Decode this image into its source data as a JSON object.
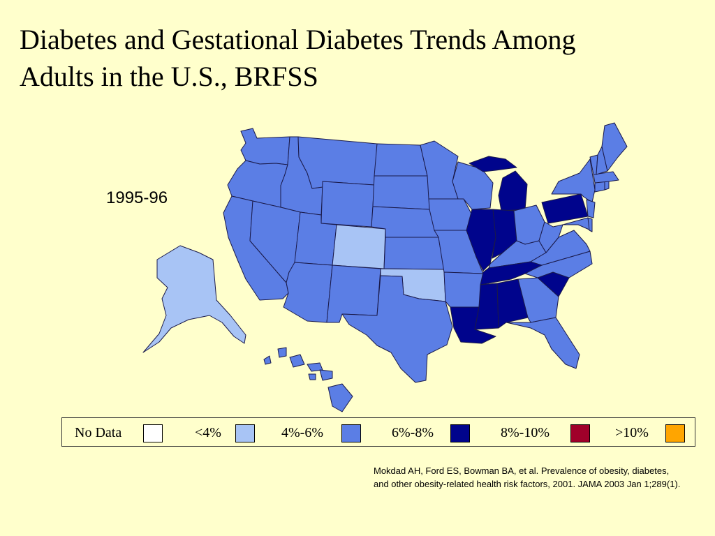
{
  "title": {
    "line1": "Diabetes and Gestational Diabetes Trends Among",
    "line2": "Adults in the U.S., BRFSS"
  },
  "period_label": "1995-96",
  "legend": [
    {
      "label": "No Data",
      "color": "#FFFFFF"
    },
    {
      "label": "<4%",
      "color": "#A8C4F5"
    },
    {
      "label": "4%-6%",
      "color": "#5B7EE5"
    },
    {
      "label": "6%-8%",
      "color": "#00048C"
    },
    {
      "label": "8%-10%",
      "color": "#A0002A"
    },
    {
      "label": ">10%",
      "color": "#FFA500"
    }
  ],
  "citation": {
    "line1": "Mokdad AH, Ford ES, Bowman BA, et al. Prevalence of obesity, diabetes,",
    "line2": "and other obesity-related health risk factors, 2001. JAMA 2003 Jan 1;289(1)."
  },
  "map_data": {
    "category_colors": {
      "lt4": "#A8C4F5",
      "4to6": "#5B7EE5",
      "6to8": "#00048C"
    },
    "states": {
      "WA": "4to6",
      "OR": "4to6",
      "CA": "4to6",
      "ID": "4to6",
      "NV": "4to6",
      "MT": "4to6",
      "WY": "4to6",
      "UT": "4to6",
      "AZ": "4to6",
      "CO": "lt4",
      "NM": "4to6",
      "ND": "4to6",
      "SD": "4to6",
      "NE": "4to6",
      "KS": "4to6",
      "OK": "lt4",
      "TX": "4to6",
      "MN": "4to6",
      "IA": "4to6",
      "MO": "4to6",
      "AR": "4to6",
      "LA": "6to8",
      "WI": "4to6",
      "IL": "6to8",
      "MI": "6to8",
      "IN": "6to8",
      "OH": "4to6",
      "KY": "4to6",
      "TN": "6to8",
      "MS": "6to8",
      "AL": "6to8",
      "GA": "4to6",
      "FL": "4to6",
      "SC": "6to8",
      "NC": "4to6",
      "VA": "4to6",
      "WV": "4to6",
      "PA": "6to8",
      "NY": "4to6",
      "VT": "4to6",
      "NH": "4to6",
      "ME": "4to6",
      "MA": "4to6",
      "RI": "4to6",
      "CT": "4to6",
      "NJ": "4to6",
      "DE": "4to6",
      "MD": "4to6",
      "AK": "lt4",
      "HI": "4to6"
    }
  }
}
